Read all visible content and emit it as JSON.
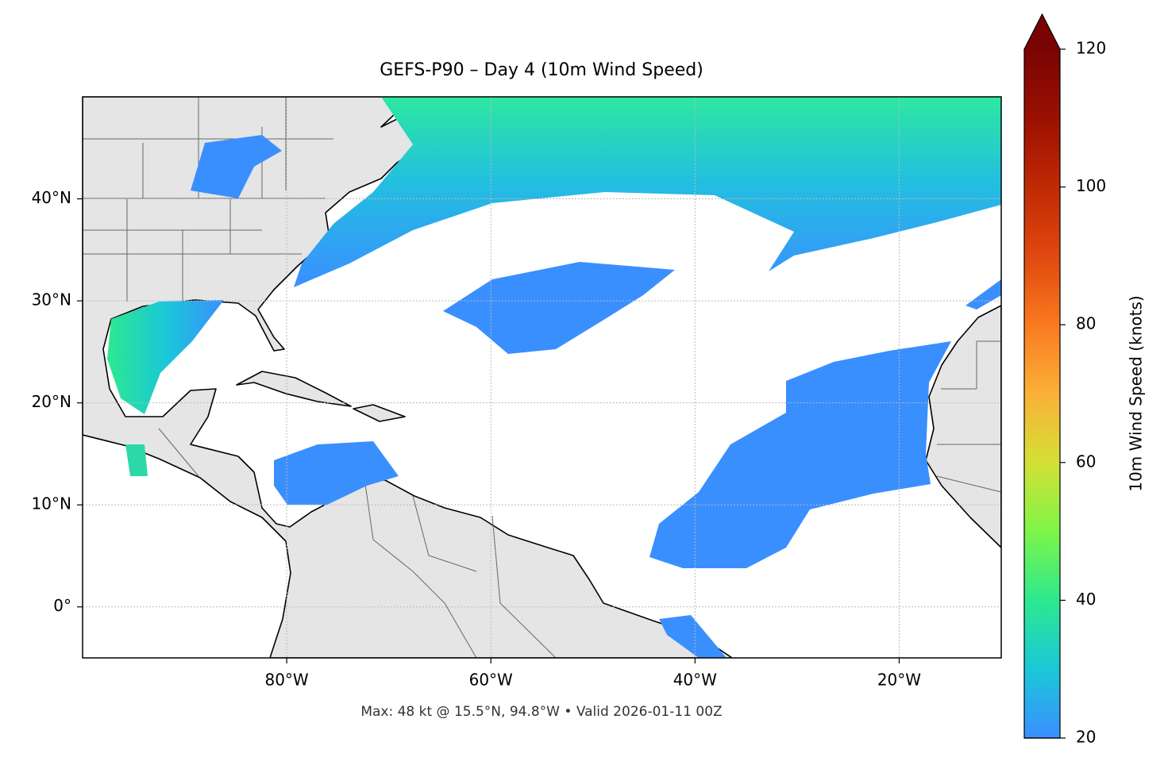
{
  "title": "GEFS-P90 – Day 4 (10m Wind Speed)",
  "map": {
    "xlim": [
      -100,
      -10
    ],
    "ylim": [
      -5,
      50
    ],
    "xticks": [
      {
        "value": -80,
        "label": "80°W"
      },
      {
        "value": -60,
        "label": "60°W"
      },
      {
        "value": -40,
        "label": "40°W"
      },
      {
        "value": -20,
        "label": "20°W"
      }
    ],
    "yticks": [
      {
        "value": 0,
        "label": "0°"
      },
      {
        "value": 10,
        "label": "10°N"
      },
      {
        "value": 20,
        "label": "20°N"
      },
      {
        "value": 30,
        "label": "30°N"
      },
      {
        "value": 40,
        "label": "40°N"
      }
    ],
    "grid": true
  },
  "colorbar": {
    "label": "10m Wind Speed (knots)",
    "lim": [
      20,
      120
    ],
    "ticks": [
      20,
      40,
      60,
      80,
      100,
      120
    ],
    "extend": "max",
    "colors": [
      "#3a8fff",
      "#1ac8d8",
      "#2de88f",
      "#7ef548",
      "#d4e035",
      "#fbb038",
      "#f97a1f",
      "#e0480f",
      "#c02a04",
      "#9b1002",
      "#7a0403"
    ]
  },
  "note": "Max: 48 kt @ 15.5°N, 94.8°W • Valid 2026-01-11 00Z"
}
